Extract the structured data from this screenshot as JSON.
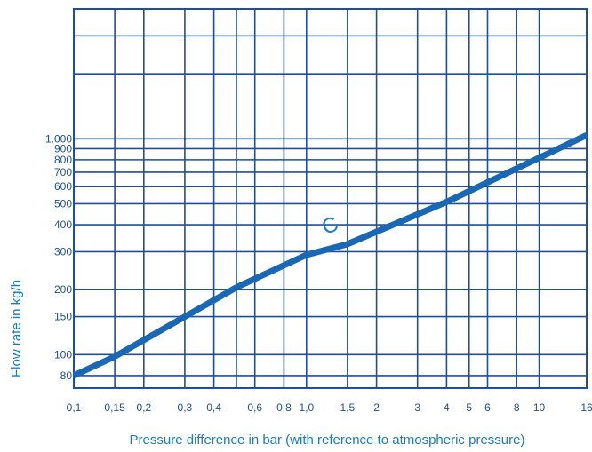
{
  "chart_data": {
    "type": "line",
    "title": "",
    "xlabel": "Pressure difference in bar (with reference to atmospheric pressure)",
    "ylabel": "Flow rate in kg/h",
    "x_scale": "log",
    "y_scale": "log",
    "xlim": [
      0.1,
      16
    ],
    "ylim": [
      70,
      4000
    ],
    "grid": true,
    "x_ticks": [
      {
        "value": 0.1,
        "label": "0,1"
      },
      {
        "value": 0.15,
        "label": "0,15"
      },
      {
        "value": 0.2,
        "label": "0,2"
      },
      {
        "value": 0.3,
        "label": "0,3"
      },
      {
        "value": 0.4,
        "label": "0,4"
      },
      {
        "value": 0.6,
        "label": "0,6"
      },
      {
        "value": 0.8,
        "label": "0,8"
      },
      {
        "value": 1.0,
        "label": "1,0"
      },
      {
        "value": 1.5,
        "label": "1,5"
      },
      {
        "value": 2,
        "label": "2"
      },
      {
        "value": 3,
        "label": "3"
      },
      {
        "value": 4,
        "label": "4"
      },
      {
        "value": 5,
        "label": "5"
      },
      {
        "value": 6,
        "label": "6"
      },
      {
        "value": 8,
        "label": "8"
      },
      {
        "value": 10,
        "label": "10"
      },
      {
        "value": 16,
        "label": "16"
      }
    ],
    "x_extra_gridlines": [
      0.5
    ],
    "y_ticks": [
      {
        "value": 80,
        "label": "80"
      },
      {
        "value": 100,
        "label": "100"
      },
      {
        "value": 150,
        "label": "150"
      },
      {
        "value": 200,
        "label": "200"
      },
      {
        "value": 300,
        "label": "300"
      },
      {
        "value": 400,
        "label": "400"
      },
      {
        "value": 500,
        "label": "500"
      },
      {
        "value": 600,
        "label": "600"
      },
      {
        "value": 700,
        "label": "700"
      },
      {
        "value": 800,
        "label": "800"
      },
      {
        "value": 900,
        "label": "900"
      },
      {
        "value": 1000,
        "label": "1.000"
      }
    ],
    "y_extra_gridlines": [
      2000,
      3000
    ],
    "series": [
      {
        "name": "C",
        "color": "#1a67b3",
        "x": [
          0.1,
          0.15,
          0.5,
          1.0,
          1.5,
          4,
          16
        ],
        "y": [
          80,
          98,
          205,
          290,
          325,
          510,
          1040
        ]
      }
    ],
    "annotations": [
      {
        "text": "C",
        "x": 1.3,
        "y": 370
      }
    ]
  }
}
